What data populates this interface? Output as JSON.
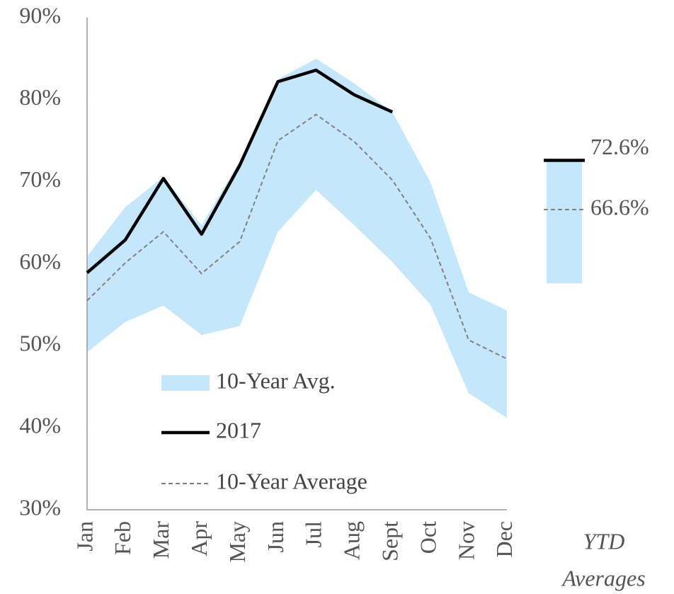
{
  "chart_data": {
    "type": "line",
    "categories": [
      "Jan",
      "Feb",
      "Mar",
      "Apr",
      "May",
      "Jun",
      "Jul",
      "Aug",
      "Sept",
      "Oct",
      "Nov",
      "Dec"
    ],
    "series": [
      {
        "name": "10-Year Avg.",
        "kind": "band",
        "color": "#c5e7fb",
        "upper": [
          60.9,
          66.9,
          70.6,
          64.7,
          72.5,
          82.5,
          85,
          82,
          78.5,
          69.9,
          56.5,
          54.3
        ],
        "lower": [
          49.2,
          52.9,
          54.9,
          51.3,
          52.4,
          63.9,
          69,
          64.7,
          60.2,
          55,
          44.2,
          41.2
        ]
      },
      {
        "name": "2017",
        "kind": "solid",
        "color": "#000000",
        "values": [
          58.9,
          62.9,
          70.4,
          63.6,
          72,
          82.2,
          83.6,
          80.6,
          78.5,
          null,
          null,
          null
        ]
      },
      {
        "name": "10-Year Average",
        "kind": "dashed",
        "color": "#808080",
        "values": [
          55.5,
          60.1,
          63.9,
          58.8,
          62.7,
          75,
          78.2,
          74.9,
          70.2,
          63.1,
          50.7,
          48.4
        ]
      }
    ],
    "ylim": [
      30,
      90
    ],
    "yticks": [
      {
        "value": 30,
        "label": "30%"
      },
      {
        "value": 40,
        "label": "40%"
      },
      {
        "value": 50,
        "label": "50%"
      },
      {
        "value": 60,
        "label": "60%"
      },
      {
        "value": 70,
        "label": "70%"
      },
      {
        "value": 80,
        "label": "80%"
      },
      {
        "value": 90,
        "label": "90%"
      }
    ],
    "ytd": {
      "label_lines": [
        "YTD",
        "Averages"
      ],
      "band_upper": 72.6,
      "band_lower": 57.6,
      "values": [
        72.6,
        66.6
      ],
      "value_labels": [
        "72.6%",
        "66.6%"
      ]
    }
  }
}
